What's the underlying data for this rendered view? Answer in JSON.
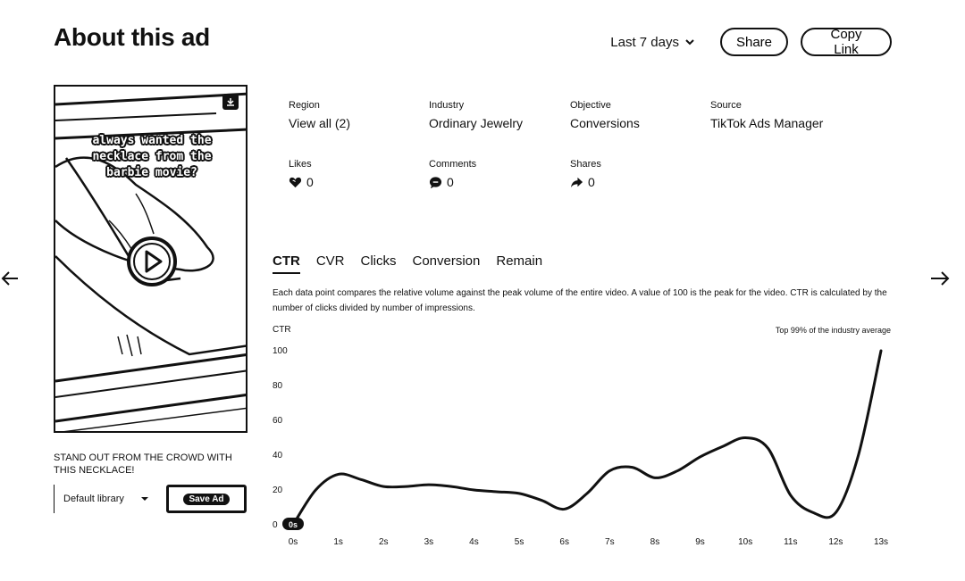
{
  "header": {
    "title": "About this ad",
    "range_label": "Last 7 days",
    "share_label": "Share",
    "copy_label": "Copy Link"
  },
  "video": {
    "caption": "always wanted the necklace from the barbie movie?"
  },
  "ad": {
    "text": "STAND OUT FROM THE CROWD WITH THIS NECKLACE!",
    "library_value": "Default library",
    "save_label": "Save Ad"
  },
  "meta": {
    "region_label": "Region",
    "region_value": "View all (2)",
    "industry_label": "Industry",
    "industry_value": "Ordinary Jewelry",
    "objective_label": "Objective",
    "objective_value": "Conversions",
    "source_label": "Source",
    "source_value": "TikTok Ads Manager",
    "likes_label": "Likes",
    "likes_value": "0",
    "comments_label": "Comments",
    "comments_value": "0",
    "shares_label": "Shares",
    "shares_value": "0"
  },
  "tabs": [
    {
      "label": "CTR",
      "active": true
    },
    {
      "label": "CVR",
      "active": false
    },
    {
      "label": "Clicks",
      "active": false
    },
    {
      "label": "Conversion",
      "active": false
    },
    {
      "label": "Remain",
      "active": false
    }
  ],
  "description": "Each data point compares the relative volume against the peak volume of the entire video. A value of 100 is the peak for the video. CTR is calculated by the number of clicks divided by number of impressions.",
  "chart_data": {
    "type": "line",
    "ylabel": "CTR",
    "note": "Top 99% of the industry average",
    "yticks": [
      0,
      20,
      40,
      60,
      80,
      100
    ],
    "ylim": [
      0,
      100
    ],
    "xticks": [
      "0s",
      "1s",
      "2s",
      "3s",
      "4s",
      "5s",
      "6s",
      "7s",
      "8s",
      "9s",
      "10s",
      "11s",
      "12s",
      "13s"
    ],
    "xlim": [
      0,
      13
    ],
    "marker_label": "0s",
    "series": [
      {
        "x": [
          0,
          0.5,
          1,
          1.5,
          2,
          2.5,
          3,
          3.5,
          4,
          4.5,
          5,
          5.5,
          6,
          6.5,
          7,
          7.5,
          8,
          8.5,
          9,
          9.5,
          10,
          10.5,
          11,
          11.5,
          12,
          12.5,
          13
        ],
        "y": [
          0,
          20,
          29,
          26,
          22,
          22,
          23,
          22,
          20,
          19,
          18,
          14,
          9,
          18,
          31,
          33,
          27,
          31,
          39,
          45,
          50,
          44,
          17,
          7,
          7,
          40,
          100
        ]
      }
    ]
  },
  "colors": {
    "ink": "#111111",
    "background": "#ffffff"
  }
}
